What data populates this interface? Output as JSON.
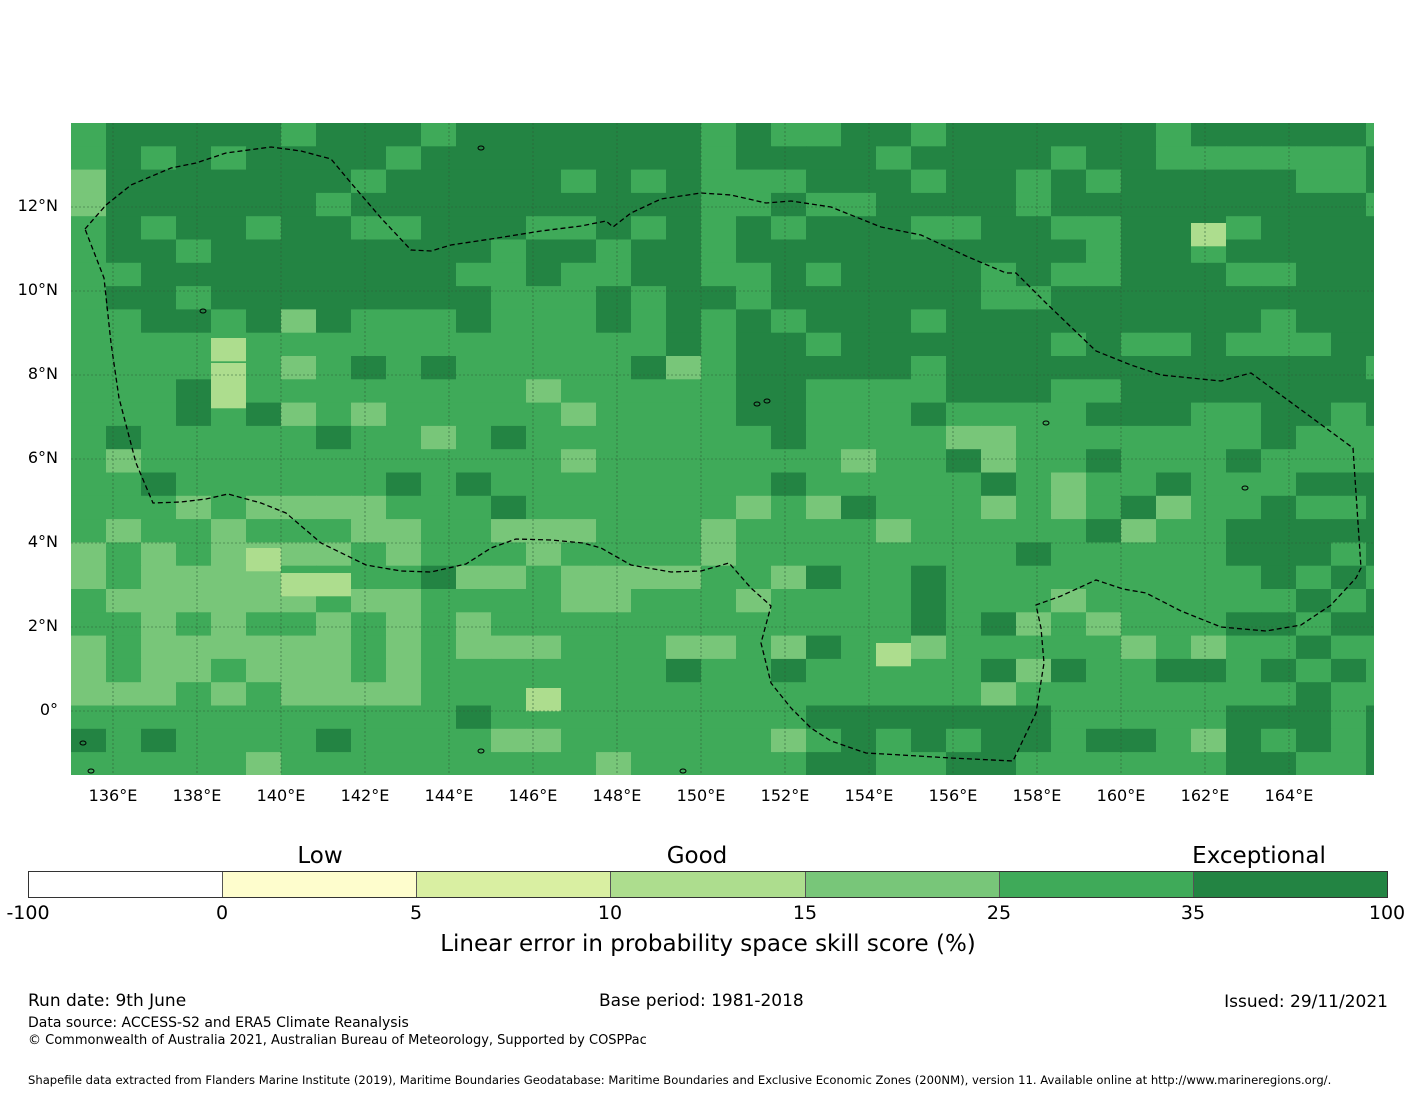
{
  "map": {
    "lat_labels": [
      "12°N",
      "10°N",
      "8°N",
      "6°N",
      "4°N",
      "2°N",
      "0°"
    ],
    "lon_labels": [
      "136°E",
      "138°E",
      "140°E",
      "142°E",
      "144°E",
      "146°E",
      "148°E",
      "150°E",
      "152°E",
      "154°E",
      "156°E",
      "158°E",
      "160°E",
      "162°E",
      "164°E"
    ]
  },
  "colorbar": {
    "categories": [
      "Low",
      "Good",
      "Exceptional"
    ],
    "ticks": [
      "-100",
      "0",
      "5",
      "10",
      "15",
      "25",
      "35",
      "100"
    ],
    "colors": [
      "#ffffff",
      "#fefdcd",
      "#d9efa2",
      "#addd8e",
      "#78c679",
      "#3faa59",
      "#238443"
    ],
    "title": "Linear error in probability space skill score (%)"
  },
  "footer": {
    "run_date": "Run date: 9th June",
    "base_period": "Base period: 1981-2018",
    "issued": "Issued: 29/11/2021",
    "data_source": "Data source: ACCESS-S2 and ERA5 Climate Reanalysis",
    "copyright": "© Commonwealth of Australia 2021, Australian Bureau of Meteorology, Supported by COSPPac",
    "shapefile": "Shapefile data extracted from Flanders Marine Institute (2019), Maritime Boundaries Geodatabase: Maritime Boundaries and Exclusive Economic Zones (200NM), version 11. Available online at http://www.marineregions.org/."
  }
}
